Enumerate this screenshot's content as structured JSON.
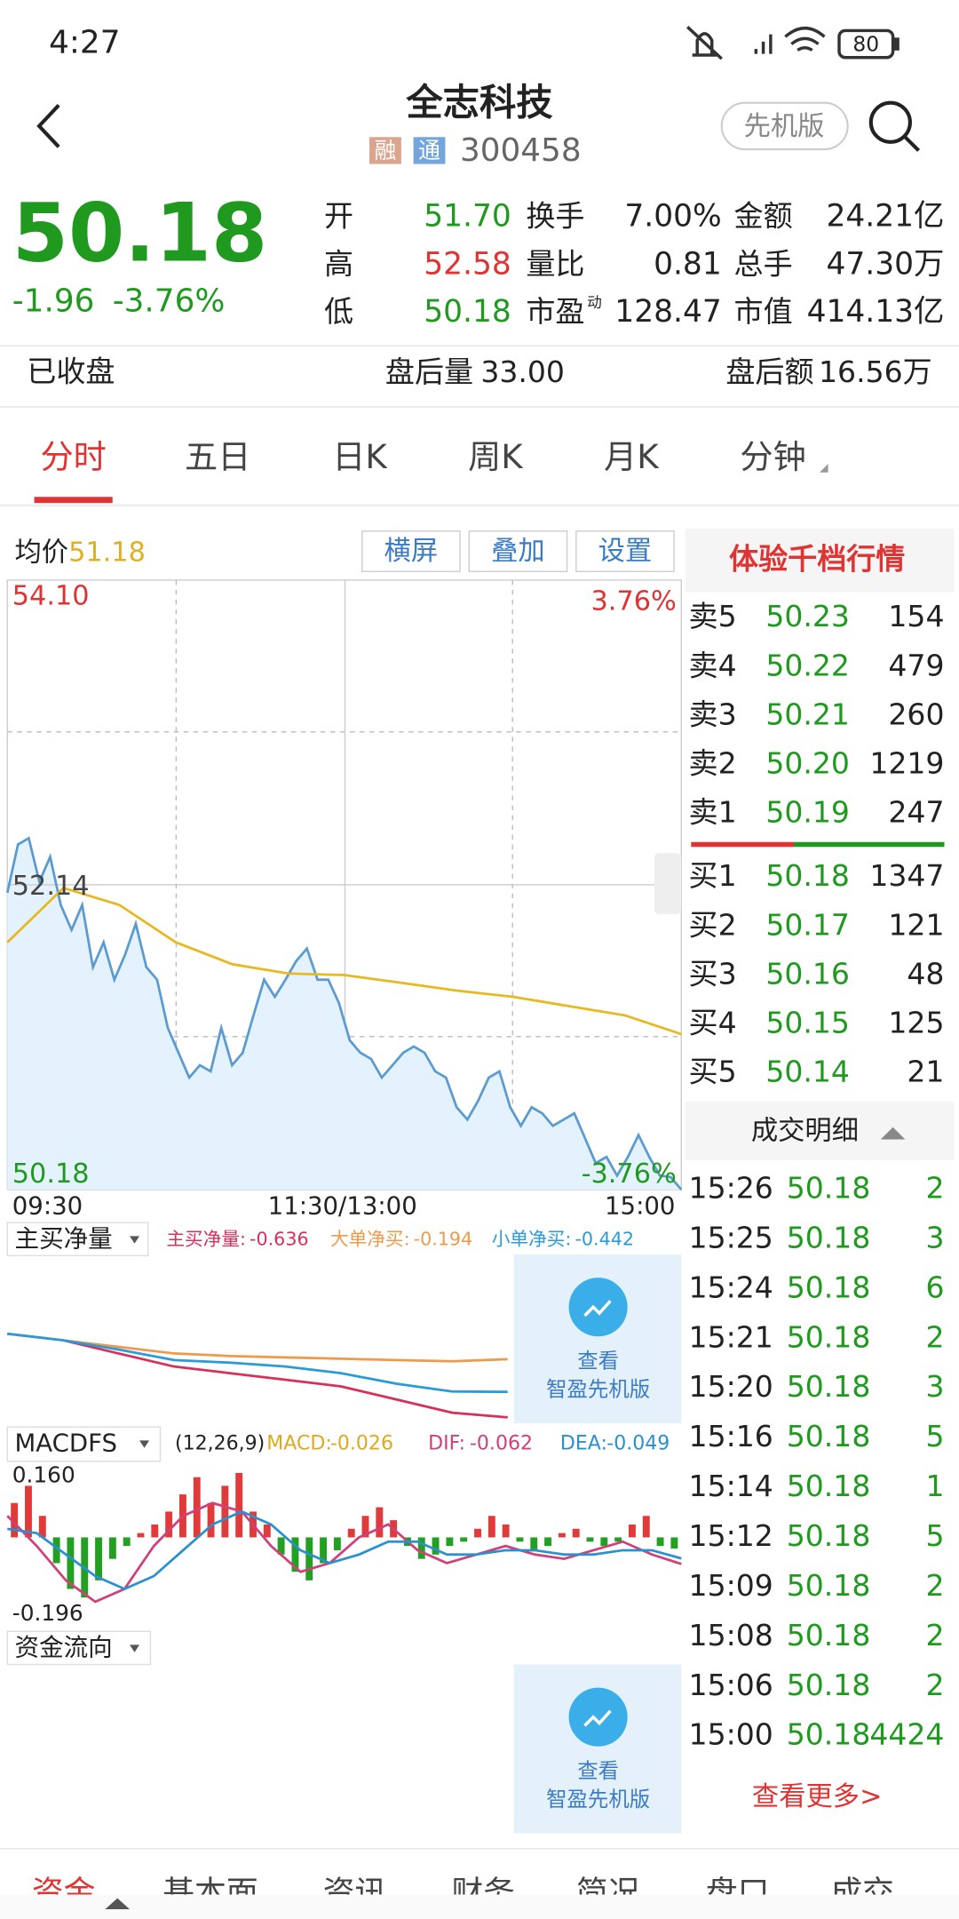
{
  "status_bar": {
    "time": "4:27",
    "battery": "80"
  },
  "header": {
    "title": "全志科技",
    "tags": [
      "融",
      "通"
    ],
    "code": "300458",
    "mode_button": "先机版"
  },
  "quote": {
    "price": "50.18",
    "change": "-1.96",
    "change_pct": "-3.76%",
    "stats": [
      [
        {
          "label": "开",
          "value": "51.70"
        },
        {
          "label": "换手",
          "value": "7.00%"
        },
        {
          "label": "金额",
          "value": "24.21亿"
        }
      ],
      [
        {
          "label": "高",
          "value": "52.58"
        },
        {
          "label": "量比",
          "value": "0.81"
        },
        {
          "label": "总手",
          "value": "47.30万"
        }
      ],
      [
        {
          "label": "低",
          "value": "50.18"
        },
        {
          "label": "市盈",
          "sup": "动",
          "value": "128.47"
        },
        {
          "label": "市值",
          "value": "414.13亿"
        }
      ]
    ]
  },
  "after_hours": {
    "status": "已收盘",
    "volume_label": "盘后量",
    "volume": "33.00",
    "amount_label": "盘后额",
    "amount": "16.56万"
  },
  "tabs": [
    "分时",
    "五日",
    "日K",
    "周K",
    "月K",
    "分钟"
  ],
  "intraday": {
    "avg_label": "均价",
    "avg_value": "51.18",
    "buttons": [
      "横屏",
      "叠加",
      "设置"
    ],
    "ylim": [
      50.18,
      54.1
    ],
    "yticks": [
      {
        "value": 54.1,
        "label": "54.10"
      },
      {
        "value": 52.14,
        "label": "52.14"
      },
      {
        "value": 50.18,
        "label": "50.18"
      }
    ],
    "pct_labels": [
      "3.76%",
      "-3.76%"
    ],
    "x_labels": [
      "09:30",
      "11:30/13:00",
      "15:00"
    ],
    "price": [
      52.09,
      52.4,
      52.44,
      52.16,
      52.32,
      52.01,
      51.85,
      52.01,
      51.61,
      51.77,
      51.53,
      51.69,
      51.89,
      51.61,
      51.53,
      51.22,
      51.06,
      50.9,
      50.98,
      50.94,
      51.22,
      50.98,
      51.06,
      51.3,
      51.53,
      51.42,
      51.53,
      51.65,
      51.73,
      51.53,
      51.53,
      51.38,
      51.14,
      51.06,
      51.02,
      50.9,
      50.98,
      51.06,
      51.1,
      51.06,
      50.94,
      50.9,
      50.71,
      50.63,
      50.75,
      50.9,
      50.94,
      50.71,
      50.59,
      50.71,
      50.67,
      50.59,
      50.63,
      50.67,
      50.51,
      50.35,
      50.39,
      50.27,
      50.39,
      50.53,
      50.39,
      50.27,
      50.26,
      50.18
    ],
    "average": [
      51.77,
      52.12,
      52.01,
      51.77,
      51.63,
      51.57,
      51.56,
      51.51,
      51.46,
      51.42,
      51.36,
      51.3,
      51.18
    ]
  },
  "flow": {
    "label": "主买净量",
    "ylim": [
      -0.7,
      0.1
    ],
    "series": [
      {
        "name": "主买净量:",
        "value_label": "-0.636",
        "color": "#d8305a",
        "values": [
          0,
          -0.05,
          -0.15,
          -0.25,
          -0.3,
          -0.35,
          -0.4,
          -0.5,
          -0.6,
          -0.636
        ]
      },
      {
        "name": "大单净买:",
        "value_label": "-0.194",
        "color": "#ee9a4a",
        "values": [
          0,
          -0.05,
          -0.1,
          -0.15,
          -0.17,
          -0.18,
          -0.19,
          -0.2,
          -0.21,
          -0.194
        ]
      },
      {
        "name": "小单净买:",
        "value_label": "-0.442",
        "color": "#2a9ad8",
        "values": [
          0,
          -0.05,
          -0.12,
          -0.2,
          -0.22,
          -0.25,
          -0.3,
          -0.38,
          -0.44,
          -0.442
        ]
      }
    ]
  },
  "macd": {
    "label": "MACDFS",
    "params": "(12,26,9)",
    "legend": [
      {
        "name": "MACD:",
        "value": "-0.026",
        "color": "#e0a820"
      },
      {
        "name": "DIF:",
        "value": "-0.062",
        "color": "#d0407a"
      },
      {
        "name": "DEA:",
        "value": "-0.049",
        "color": "#2a90d0"
      }
    ],
    "ylim": [
      -0.196,
      0.16
    ],
    "yticks": [
      {
        "value": 0.16,
        "label": "0.160"
      },
      {
        "value": -0.196,
        "label": "-0.196"
      }
    ],
    "bars": [
      0.08,
      0.12,
      0.05,
      -0.06,
      -0.12,
      -0.14,
      -0.1,
      -0.05,
      -0.02,
      0.01,
      0.03,
      0.06,
      0.1,
      0.14,
      0.08,
      0.12,
      0.15,
      0.06,
      0.03,
      -0.04,
      -0.08,
      -0.1,
      -0.06,
      -0.03,
      0.02,
      0.05,
      0.07,
      0.04,
      -0.02,
      -0.05,
      -0.04,
      -0.02,
      -0.01,
      0.02,
      0.05,
      0.03,
      -0.01,
      -0.03,
      -0.02,
      0.01,
      0.02,
      -0.01,
      -0.02,
      -0.01,
      0.03,
      0.05,
      -0.02,
      -0.026
    ],
    "dif": [
      0.05,
      -0.02,
      -0.1,
      -0.15,
      -0.12,
      -0.02,
      0.05,
      0.08,
      0.06,
      -0.02,
      -0.08,
      -0.06,
      0.0,
      0.03,
      -0.03,
      -0.06,
      -0.04,
      -0.02,
      -0.04,
      -0.05,
      -0.03,
      -0.01,
      -0.04,
      -0.062
    ],
    "dea": [
      0.02,
      0.01,
      -0.04,
      -0.09,
      -0.12,
      -0.09,
      -0.03,
      0.03,
      0.06,
      0.03,
      -0.03,
      -0.06,
      -0.04,
      -0.01,
      -0.01,
      -0.04,
      -0.04,
      -0.03,
      -0.03,
      -0.04,
      -0.04,
      -0.03,
      -0.03,
      -0.049
    ]
  },
  "fund_direction": {
    "label": "资金流向"
  },
  "promos": [
    {
      "line1": "查看",
      "line2": "智盈先机版"
    },
    {
      "line1": "查看",
      "line2": "智盈先机版"
    }
  ],
  "order_book": {
    "title": "体验千档行情",
    "asks": [
      {
        "label": "卖5",
        "price": "50.23",
        "volume": "154"
      },
      {
        "label": "卖4",
        "price": "50.22",
        "volume": "479"
      },
      {
        "label": "卖3",
        "price": "50.21",
        "volume": "260"
      },
      {
        "label": "卖2",
        "price": "50.20",
        "volume": "1219"
      },
      {
        "label": "卖1",
        "price": "50.19",
        "volume": "247"
      }
    ],
    "bids": [
      {
        "label": "买1",
        "price": "50.18",
        "volume": "1347"
      },
      {
        "label": "买2",
        "price": "50.17",
        "volume": "121"
      },
      {
        "label": "买3",
        "price": "50.16",
        "volume": "48"
      },
      {
        "label": "买4",
        "price": "50.15",
        "volume": "125"
      },
      {
        "label": "买5",
        "price": "50.14",
        "volume": "21"
      }
    ]
  },
  "trades": {
    "title": "成交明细",
    "more": "查看更多>",
    "rows": [
      {
        "time": "15:26",
        "price": "50.18",
        "volume": "2"
      },
      {
        "time": "15:25",
        "price": "50.18",
        "volume": "3"
      },
      {
        "time": "15:24",
        "price": "50.18",
        "volume": "6"
      },
      {
        "time": "15:21",
        "price": "50.18",
        "volume": "2"
      },
      {
        "time": "15:20",
        "price": "50.18",
        "volume": "3"
      },
      {
        "time": "15:16",
        "price": "50.18",
        "volume": "5"
      },
      {
        "time": "15:14",
        "price": "50.18",
        "volume": "1"
      },
      {
        "time": "15:12",
        "price": "50.18",
        "volume": "5"
      },
      {
        "time": "15:09",
        "price": "50.18",
        "volume": "2"
      },
      {
        "time": "15:08",
        "price": "50.18",
        "volume": "2"
      },
      {
        "time": "15:06",
        "price": "50.18",
        "volume": "2"
      },
      {
        "time": "15:00",
        "price": "50.18",
        "volume": "4424"
      }
    ]
  },
  "bottom_tabs": [
    "资金",
    "基本面",
    "资讯",
    "财务",
    "简况",
    "盘口",
    "成交"
  ]
}
